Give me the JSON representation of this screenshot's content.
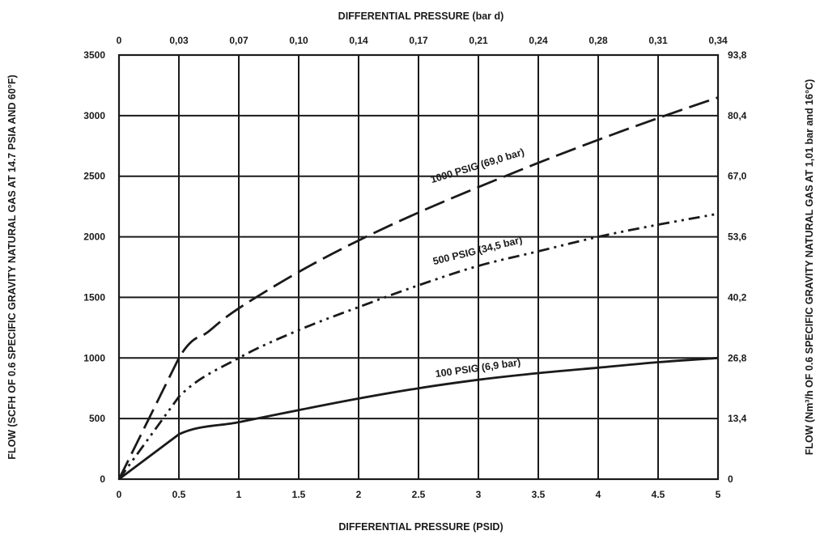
{
  "chart_data": {
    "type": "line",
    "x_bottom": {
      "label": "DIFFERENTIAL PRESSURE (PSID)",
      "range": [
        0,
        5
      ],
      "ticks": [
        0,
        0.5,
        1,
        1.5,
        2,
        2.5,
        3,
        3.5,
        4,
        4.5,
        5
      ],
      "tick_labels": [
        "0",
        "0.5",
        "1",
        "1.5",
        "2",
        "2.5",
        "3",
        "3.5",
        "4",
        "4.5",
        "5"
      ]
    },
    "x_top": {
      "label": "DIFFERENTIAL PRESSURE (bar d)",
      "tick_labels": [
        "0",
        "0,03",
        "0,07",
        "0,10",
        "0,14",
        "0,17",
        "0,21",
        "0,24",
        "0,28",
        "0,31",
        "0,34"
      ]
    },
    "y_left": {
      "label": "FLOW (SCFH OF 0.6 SPECIFIC GRAVITY NATURAL GAS AT 14.7 PSIA AND 60°F)",
      "range": [
        0,
        3500
      ],
      "ticks": [
        0,
        500,
        1000,
        1500,
        2000,
        2500,
        3000,
        3500
      ],
      "tick_labels": [
        "0",
        "500",
        "1000",
        "1500",
        "2000",
        "2500",
        "3000",
        "3500"
      ]
    },
    "y_right": {
      "label": "FLOW (Nm³/h OF 0.6 SPECIFIC GRAVITY NATURAL GAS AT 1,01 bar and 16°C)",
      "tick_labels": [
        "0",
        "13,4",
        "26,8",
        "40,2",
        "53,6",
        "67,0",
        "80,4",
        "93,8"
      ]
    },
    "grid": true,
    "series": [
      {
        "name": "1000 PSIG (69,0 bar)",
        "dash": "long-dash",
        "x": [
          0,
          0.5,
          0.75,
          1,
          1.5,
          2,
          2.5,
          3,
          3.5,
          4,
          4.5,
          5
        ],
        "values": [
          0,
          1000,
          1220,
          1410,
          1710,
          1970,
          2200,
          2410,
          2610,
          2800,
          2980,
          3150
        ]
      },
      {
        "name": "500 PSIG (34,5 bar)",
        "dash": "dash-dot-dot",
        "x": [
          0,
          0.5,
          1,
          1.5,
          2,
          2.5,
          3,
          3.5,
          4,
          4.5,
          5
        ],
        "values": [
          0,
          680,
          1000,
          1230,
          1420,
          1600,
          1760,
          1880,
          2000,
          2100,
          2190
        ]
      },
      {
        "name": "100 PSIG (6,9 bar)",
        "dash": "solid",
        "x": [
          0,
          0.5,
          1,
          1.5,
          2,
          2.5,
          3,
          3.5,
          4,
          4.5,
          5
        ],
        "values": [
          0,
          370,
          470,
          570,
          665,
          750,
          820,
          875,
          920,
          965,
          1000
        ]
      }
    ]
  }
}
